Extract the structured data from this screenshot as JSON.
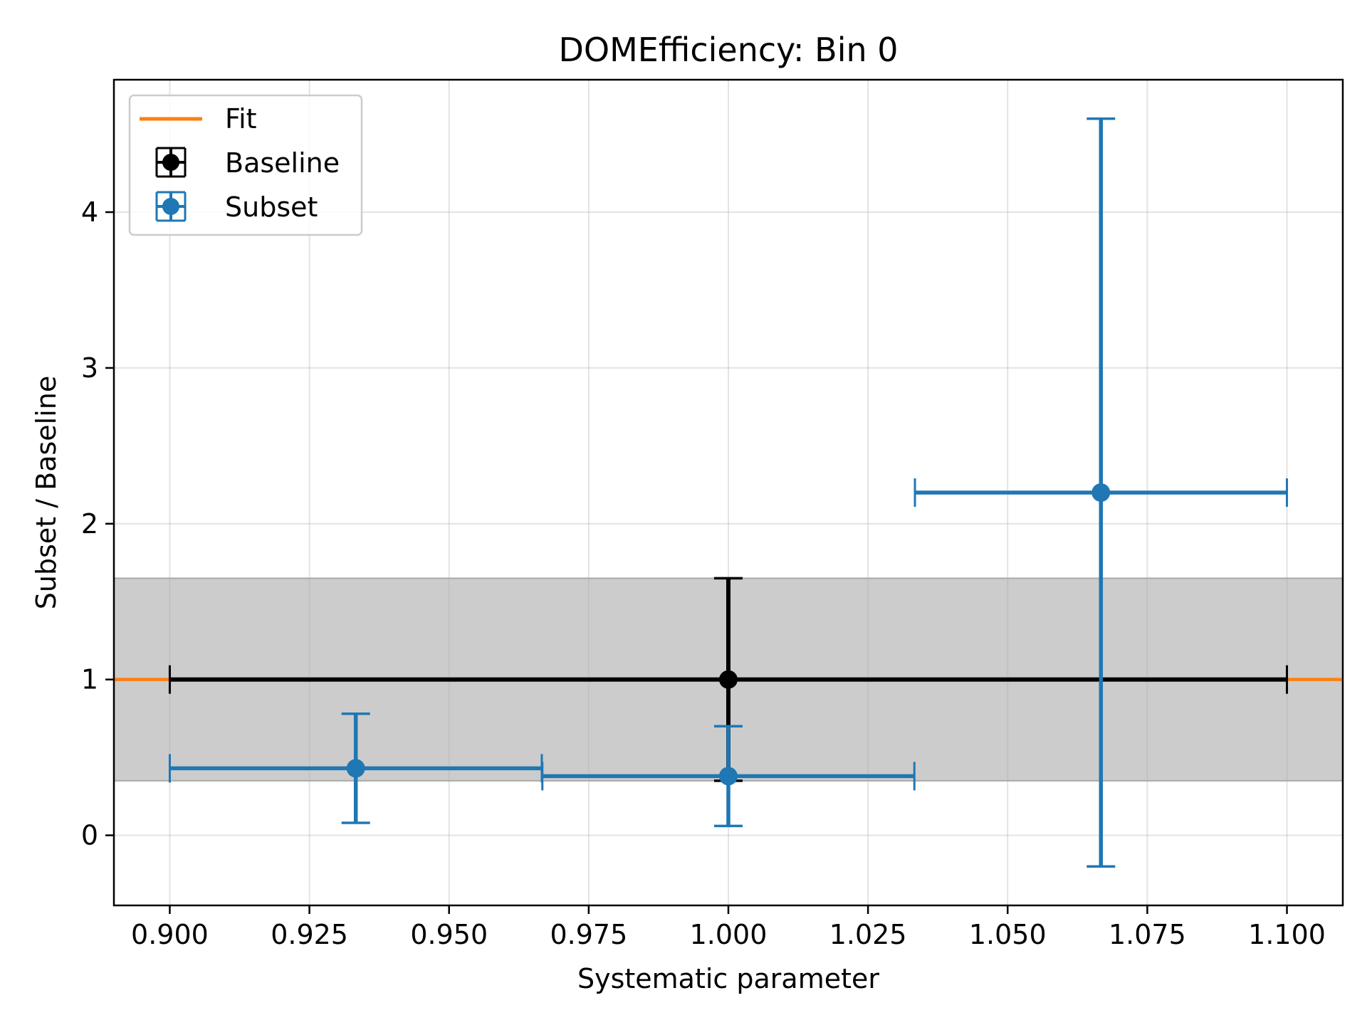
{
  "chart_data": {
    "type": "scatter",
    "title": "DOMEfficiency: Bin 0",
    "xlabel": "Systematic parameter",
    "ylabel": "Subset / Baseline",
    "xlim": [
      0.89,
      1.11
    ],
    "ylim": [
      -0.45,
      4.85
    ],
    "xticks": [
      "0.900",
      "0.925",
      "0.950",
      "0.975",
      "1.000",
      "1.025",
      "1.050",
      "1.075",
      "1.100"
    ],
    "yticks": [
      "0",
      "1",
      "2",
      "3",
      "4"
    ],
    "grid": true,
    "legend_placement": "top-left",
    "band": {
      "y_low": 0.35,
      "y_high": 1.65,
      "color": "#cccccc"
    },
    "fit": {
      "name": "Fit",
      "color": "#ff7f0e",
      "y": 1.0
    },
    "baseline": {
      "name": "Baseline",
      "color": "#000000",
      "points": [
        {
          "x": 1.0,
          "y": 1.0,
          "xerr": 0.1,
          "yerr": 0.65
        }
      ]
    },
    "subset": {
      "name": "Subset",
      "color": "#1f77b4",
      "points": [
        {
          "x": 0.9333,
          "y": 0.43,
          "xerr": 0.0333,
          "yerr_low": 0.35,
          "yerr_high": 0.35
        },
        {
          "x": 1.0,
          "y": 0.38,
          "xerr": 0.0333,
          "yerr_low": 0.32,
          "yerr_high": 0.32
        },
        {
          "x": 1.0667,
          "y": 2.2,
          "xerr": 0.0333,
          "yerr_low": 2.4,
          "yerr_high": 2.4
        }
      ]
    }
  }
}
